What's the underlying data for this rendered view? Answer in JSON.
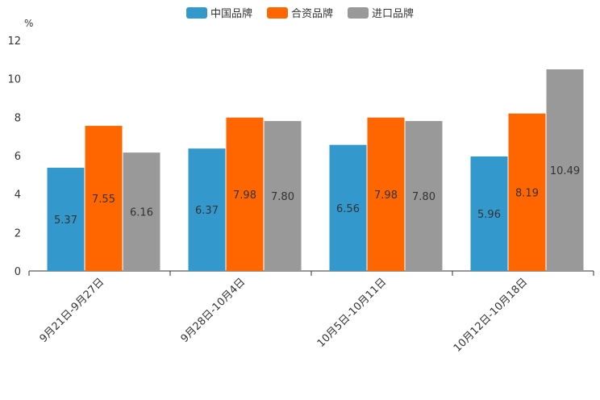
{
  "chart_data": {
    "type": "bar",
    "unit": "%",
    "categories": [
      "9月21日-9月27日",
      "9月28日-10月4日",
      "10月5日-10月11日",
      "10月12日-10月18日"
    ],
    "series": [
      {
        "name": "中国品牌",
        "color": "#3399cc",
        "values": [
          5.37,
          6.37,
          6.56,
          5.96
        ],
        "labels": [
          "5.37",
          "6.37",
          "6.56",
          "5.96"
        ]
      },
      {
        "name": "合资品牌",
        "color": "#ff6600",
        "values": [
          7.55,
          7.98,
          7.98,
          8.19
        ],
        "labels": [
          "7.55",
          "7.98",
          "7.98",
          "8.19"
        ]
      },
      {
        "name": "进口品牌",
        "color": "#999999",
        "values": [
          6.16,
          7.8,
          7.8,
          10.49
        ],
        "labels": [
          "6.16",
          "7.80",
          "7.80",
          "10.49"
        ]
      }
    ],
    "ylim": [
      0,
      12
    ],
    "yticks": [
      "0",
      "2",
      "4",
      "6",
      "8",
      "10",
      "12"
    ],
    "legend_position": "top-center"
  }
}
